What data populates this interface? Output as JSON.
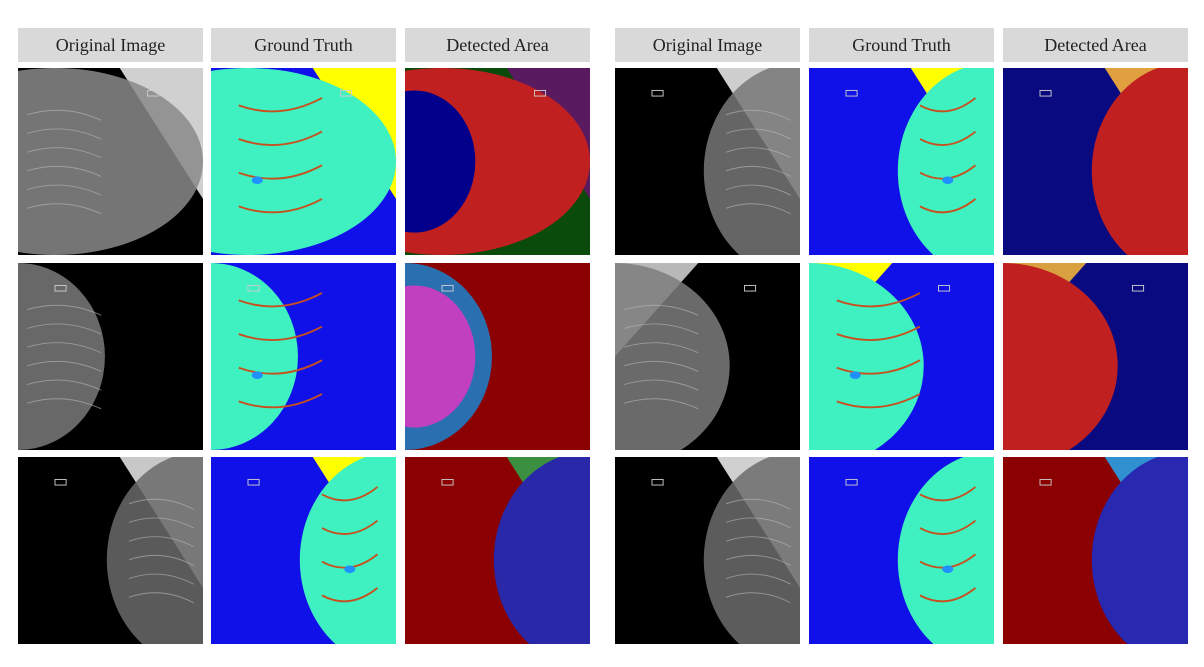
{
  "panels": [
    {
      "headers": [
        "Original Image",
        "Ground Truth",
        "Detected Area"
      ]
    },
    {
      "headers": [
        "Original Image",
        "Ground Truth",
        "Detected Area"
      ]
    }
  ]
}
